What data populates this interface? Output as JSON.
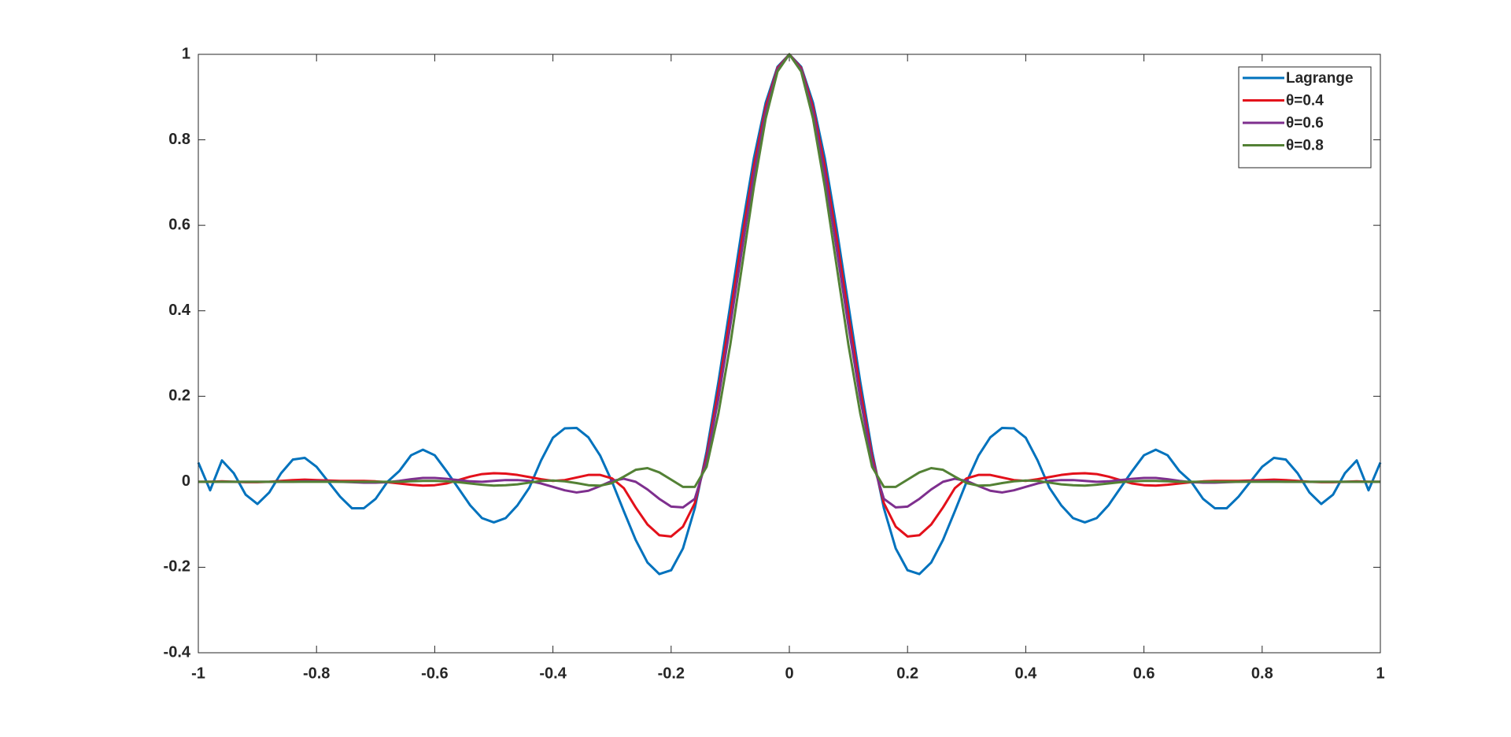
{
  "chart_data": {
    "type": "line",
    "x": [
      -1,
      -0.98,
      -0.96,
      -0.94,
      -0.92,
      -0.9,
      -0.88,
      -0.86,
      -0.84,
      -0.82,
      -0.8,
      -0.78,
      -0.76,
      -0.74,
      -0.72,
      -0.7,
      -0.68,
      -0.66,
      -0.64,
      -0.62,
      -0.6,
      -0.58,
      -0.56,
      -0.54,
      -0.52,
      -0.5,
      -0.48,
      -0.46,
      -0.44,
      -0.42,
      -0.4,
      -0.38,
      -0.36,
      -0.34,
      -0.32,
      -0.3,
      -0.28,
      -0.26,
      -0.24,
      -0.22,
      -0.2,
      -0.18,
      -0.16,
      -0.14,
      -0.12,
      -0.1,
      -0.08,
      -0.06,
      -0.04,
      -0.02,
      0,
      0.02,
      0.04,
      0.06,
      0.08,
      0.1,
      0.12,
      0.14,
      0.16,
      0.18,
      0.2,
      0.22,
      0.24,
      0.26,
      0.28,
      0.3,
      0.32,
      0.34,
      0.36,
      0.38,
      0.4,
      0.42,
      0.44,
      0.46,
      0.48,
      0.5,
      0.52,
      0.54,
      0.56,
      0.58,
      0.6,
      0.62,
      0.64,
      0.66,
      0.68,
      0.7,
      0.72,
      0.74,
      0.76,
      0.78,
      0.8,
      0.82,
      0.84,
      0.86,
      0.88,
      0.9,
      0.92,
      0.94,
      0.96,
      0.98,
      1
    ],
    "series": [
      {
        "name": "Lagrange",
        "color": "#0072bd",
        "values": [
          0.045,
          -0.02,
          0.05,
          0.02,
          -0.03,
          -0.052,
          -0.025,
          0.02,
          0.052,
          0.056,
          0.035,
          0,
          -0.035,
          -0.062,
          -0.062,
          -0.04,
          0,
          0.025,
          0.062,
          0.075,
          0.062,
          0.025,
          -0.015,
          -0.055,
          -0.085,
          -0.095,
          -0.085,
          -0.055,
          -0.014,
          0.05,
          0.103,
          0.125,
          0.126,
          0.104,
          0.061,
          0,
          -0.069,
          -0.136,
          -0.189,
          -0.216,
          -0.207,
          -0.156,
          -0.062,
          0.071,
          0.234,
          0.413,
          0.593,
          0.757,
          0.887,
          0.971,
          1,
          0.971,
          0.887,
          0.757,
          0.593,
          0.413,
          0.234,
          0.071,
          -0.062,
          -0.156,
          -0.207,
          -0.216,
          -0.189,
          -0.136,
          -0.069,
          0,
          0.061,
          0.104,
          0.126,
          0.125,
          0.103,
          0.05,
          -0.014,
          -0.055,
          -0.085,
          -0.095,
          -0.085,
          -0.055,
          -0.015,
          0.025,
          0.062,
          0.075,
          0.062,
          0.025,
          0,
          -0.04,
          -0.062,
          -0.062,
          -0.035,
          0,
          0.035,
          0.056,
          0.052,
          0.02,
          -0.025,
          -0.052,
          -0.03,
          0.02,
          0.05,
          -0.02,
          0.045
        ]
      },
      {
        "name": "θ=0.4",
        "color": "#e3101a",
        "values": [
          0,
          0,
          0.001,
          0,
          -0.001,
          -0.001,
          0,
          0.002,
          0.004,
          0.005,
          0.004,
          0.003,
          0.002,
          0.002,
          0.002,
          0.001,
          -0.001,
          -0.004,
          -0.007,
          -0.009,
          -0.008,
          -0.004,
          0.004,
          0.012,
          0.018,
          0.02,
          0.019,
          0.016,
          0.011,
          0.006,
          0.002,
          0.004,
          0.01,
          0.016,
          0.016,
          0.008,
          -0.015,
          -0.06,
          -0.1,
          -0.125,
          -0.128,
          -0.105,
          -0.05,
          0.06,
          0.215,
          0.39,
          0.57,
          0.738,
          0.877,
          0.968,
          1,
          0.968,
          0.877,
          0.738,
          0.57,
          0.39,
          0.215,
          0.06,
          -0.05,
          -0.105,
          -0.128,
          -0.125,
          -0.1,
          -0.06,
          -0.015,
          0.008,
          0.016,
          0.016,
          0.01,
          0.004,
          0.002,
          0.006,
          0.011,
          0.016,
          0.019,
          0.02,
          0.018,
          0.012,
          0.004,
          -0.004,
          -0.008,
          -0.009,
          -0.007,
          -0.004,
          -0.001,
          0.001,
          0.002,
          0.002,
          0.002,
          0.003,
          0.004,
          0.005,
          0.004,
          0.002,
          0,
          -0.001,
          -0.001,
          0,
          0.001,
          0,
          0
        ]
      },
      {
        "name": "θ=0.6",
        "color": "#7e2f8e",
        "values": [
          0,
          0,
          0,
          0,
          0,
          0,
          0,
          0,
          0,
          0.001,
          0.001,
          0.001,
          0,
          -0.001,
          -0.002,
          -0.002,
          -0.001,
          0.002,
          0.006,
          0.009,
          0.009,
          0.007,
          0.004,
          0.001,
          0,
          0.002,
          0.004,
          0.004,
          0.002,
          -0.004,
          -0.012,
          -0.02,
          -0.025,
          -0.021,
          -0.01,
          0.002,
          0.007,
          0,
          -0.018,
          -0.04,
          -0.058,
          -0.06,
          -0.04,
          0.05,
          0.195,
          0.365,
          0.545,
          0.72,
          0.866,
          0.965,
          1,
          0.965,
          0.866,
          0.72,
          0.545,
          0.365,
          0.195,
          0.05,
          -0.04,
          -0.06,
          -0.058,
          -0.04,
          -0.018,
          0,
          0.007,
          0.002,
          -0.01,
          -0.021,
          -0.025,
          -0.02,
          -0.012,
          -0.004,
          0.002,
          0.004,
          0.004,
          0.002,
          0,
          0.001,
          0.004,
          0.007,
          0.009,
          0.009,
          0.006,
          0.002,
          -0.001,
          -0.002,
          -0.002,
          -0.001,
          0,
          0.001,
          0.001,
          0.001,
          0,
          0,
          0,
          0,
          0,
          0,
          0,
          0,
          0
        ]
      },
      {
        "name": "θ=0.8",
        "color": "#538135",
        "values": [
          0,
          0,
          0,
          0,
          0,
          0,
          0,
          0,
          0,
          0,
          0,
          0,
          0,
          0,
          0,
          0,
          0,
          0,
          0.001,
          0.002,
          0.002,
          0.001,
          -0.001,
          -0.004,
          -0.007,
          -0.009,
          -0.008,
          -0.006,
          -0.002,
          0.002,
          0.003,
          0.001,
          -0.003,
          -0.008,
          -0.009,
          -0.003,
          0.012,
          0.028,
          0.032,
          0.022,
          0.005,
          -0.012,
          -0.012,
          0.035,
          0.16,
          0.32,
          0.505,
          0.69,
          0.85,
          0.96,
          1,
          0.96,
          0.85,
          0.69,
          0.505,
          0.32,
          0.16,
          0.035,
          -0.012,
          -0.012,
          0.005,
          0.022,
          0.032,
          0.028,
          0.012,
          -0.003,
          -0.009,
          -0.008,
          -0.003,
          0.001,
          0.003,
          0.002,
          -0.002,
          -0.006,
          -0.008,
          -0.009,
          -0.007,
          -0.004,
          -0.001,
          0.001,
          0.002,
          0.002,
          0.001,
          0,
          0,
          0,
          0,
          0,
          0,
          0,
          0,
          0,
          0,
          0,
          0,
          0,
          0,
          0,
          0,
          0,
          0
        ]
      }
    ],
    "xlim": [
      -1,
      1
    ],
    "xticks": [
      -1,
      -0.8,
      -0.6,
      -0.4,
      -0.2,
      0,
      0.2,
      0.4,
      0.6,
      0.8,
      1
    ],
    "ylim": [
      -0.4,
      1
    ],
    "yticks": [
      -0.4,
      -0.2,
      0,
      0.2,
      0.4,
      0.6,
      0.8,
      1
    ],
    "grid": false,
    "legend": "northeast"
  }
}
